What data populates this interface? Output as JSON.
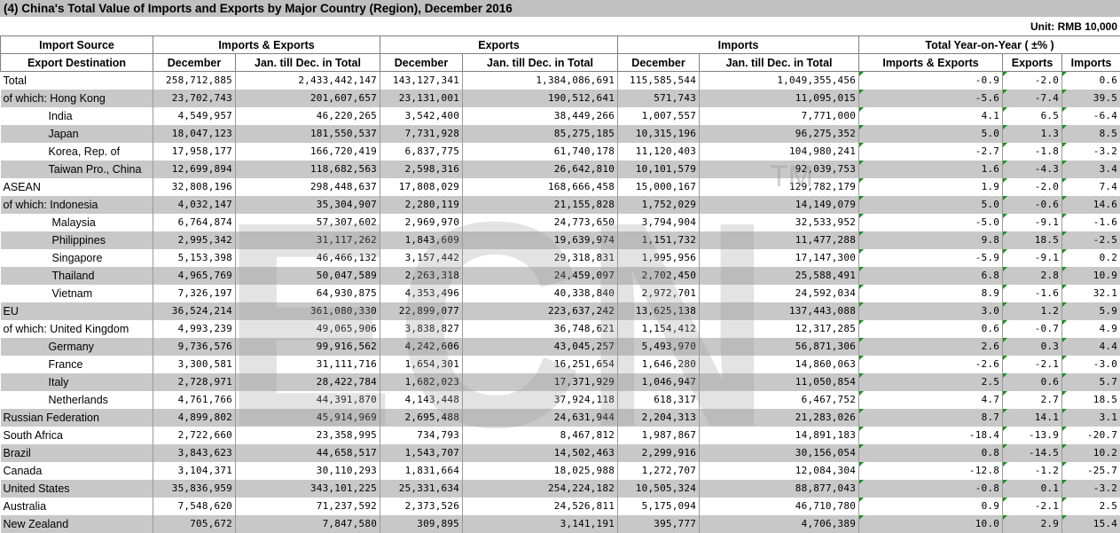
{
  "title": "(4) China's Total Value of Imports and Exports by Major Country (Region), December 2016",
  "unit": "Unit: RMB 10,000",
  "watermark": {
    "text": "ECN",
    "tm": "TM"
  },
  "header": {
    "row1": [
      "Import Source",
      "Imports & Exports",
      "Exports",
      "Imports",
      "Total Year-on-Year ( ±% )"
    ],
    "row2": [
      "Export Destination",
      "December",
      "Jan. till Dec. in Total",
      "December",
      "Jan. till Dec. in Total",
      "December",
      "Jan. till Dec. in Total",
      "Imports & Exports",
      "Exports",
      "Imports"
    ]
  },
  "rows": [
    {
      "label": "Total",
      "indent": 0,
      "values": [
        "258,712,885",
        "2,433,442,147",
        "143,127,341",
        "1,384,086,691",
        "115,585,544",
        "1,049,355,456",
        "-0.9",
        "-2.0",
        "0.6"
      ]
    },
    {
      "label": "of which: Hong Kong",
      "indent": 0,
      "values": [
        "23,702,743",
        "201,607,657",
        "23,131,001",
        "190,512,641",
        "571,743",
        "11,095,015",
        "-5.6",
        "-7.4",
        "39.5"
      ]
    },
    {
      "label": "India",
      "indent": 1,
      "values": [
        "4,549,957",
        "46,220,265",
        "3,542,400",
        "38,449,266",
        "1,007,557",
        "7,771,000",
        "4.1",
        "6.5",
        "-6.4"
      ]
    },
    {
      "label": "Japan",
      "indent": 1,
      "values": [
        "18,047,123",
        "181,550,537",
        "7,731,928",
        "85,275,185",
        "10,315,196",
        "96,275,352",
        "5.0",
        "1.3",
        "8.5"
      ]
    },
    {
      "label": "Korea, Rep. of",
      "indent": 1,
      "values": [
        "17,958,177",
        "166,720,419",
        "6,837,775",
        "61,740,178",
        "11,120,403",
        "104,980,241",
        "-2.7",
        "-1.8",
        "-3.2"
      ]
    },
    {
      "label": "Taiwan Pro., China",
      "indent": 1,
      "values": [
        "12,699,894",
        "118,682,563",
        "2,598,316",
        "26,642,810",
        "10,101,579",
        "92,039,753",
        "1.6",
        "-4.3",
        "3.4"
      ]
    },
    {
      "label": "ASEAN",
      "indent": 0,
      "values": [
        "32,808,196",
        "298,448,637",
        "17,808,029",
        "168,666,458",
        "15,000,167",
        "129,782,179",
        "1.9",
        "-2.0",
        "7.4"
      ]
    },
    {
      "label": "of which: Indonesia",
      "indent": 0,
      "values": [
        "4,032,147",
        "35,304,907",
        "2,280,119",
        "21,155,828",
        "1,752,029",
        "14,149,079",
        "5.0",
        "-0.6",
        "14.6"
      ]
    },
    {
      "label": "Malaysia",
      "indent": 2,
      "values": [
        "6,764,874",
        "57,307,602",
        "2,969,970",
        "24,773,650",
        "3,794,904",
        "32,533,952",
        "-5.0",
        "-9.1",
        "-1.6"
      ]
    },
    {
      "label": "Philippines",
      "indent": 2,
      "values": [
        "2,995,342",
        "31,117,262",
        "1,843,609",
        "19,639,974",
        "1,151,732",
        "11,477,288",
        "9.8",
        "18.5",
        "-2.5"
      ]
    },
    {
      "label": "Singapore",
      "indent": 2,
      "values": [
        "5,153,398",
        "46,466,132",
        "3,157,442",
        "29,318,831",
        "1,995,956",
        "17,147,300",
        "-5.9",
        "-9.1",
        "0.2"
      ]
    },
    {
      "label": "Thailand",
      "indent": 2,
      "values": [
        "4,965,769",
        "50,047,589",
        "2,263,318",
        "24,459,097",
        "2,702,450",
        "25,588,491",
        "6.8",
        "2.8",
        "10.9"
      ]
    },
    {
      "label": "Vietnam",
      "indent": 2,
      "values": [
        "7,326,197",
        "64,930,875",
        "4,353,496",
        "40,338,840",
        "2,972,701",
        "24,592,034",
        "8.9",
        "-1.6",
        "32.1"
      ]
    },
    {
      "label": "EU",
      "indent": 0,
      "values": [
        "36,524,214",
        "361,080,330",
        "22,899,077",
        "223,637,242",
        "13,625,138",
        "137,443,088",
        "3.0",
        "1.2",
        "5.9"
      ]
    },
    {
      "label": "of which: United Kingdom",
      "indent": 0,
      "values": [
        "4,993,239",
        "49,065,906",
        "3,838,827",
        "36,748,621",
        "1,154,412",
        "12,317,285",
        "0.6",
        "-0.7",
        "4.9"
      ]
    },
    {
      "label": "Germany",
      "indent": 1,
      "values": [
        "9,736,576",
        "99,916,562",
        "4,242,606",
        "43,045,257",
        "5,493,970",
        "56,871,306",
        "2.6",
        "0.3",
        "4.4"
      ]
    },
    {
      "label": "France",
      "indent": 1,
      "values": [
        "3,300,581",
        "31,111,716",
        "1,654,301",
        "16,251,654",
        "1,646,280",
        "14,860,063",
        "-2.6",
        "-2.1",
        "-3.0"
      ]
    },
    {
      "label": "Italy",
      "indent": 1,
      "values": [
        "2,728,971",
        "28,422,784",
        "1,682,023",
        "17,371,929",
        "1,046,947",
        "11,050,854",
        "2.5",
        "0.6",
        "5.7"
      ]
    },
    {
      "label": "Netherlands",
      "indent": 1,
      "values": [
        "4,761,766",
        "44,391,870",
        "4,143,448",
        "37,924,118",
        "618,317",
        "6,467,752",
        "4.7",
        "2.7",
        "18.5"
      ]
    },
    {
      "label": "Russian Federation",
      "indent": 0,
      "values": [
        "4,899,802",
        "45,914,969",
        "2,695,488",
        "24,631,944",
        "2,204,313",
        "21,283,026",
        "8.7",
        "14.1",
        "3.1"
      ]
    },
    {
      "label": "South Africa",
      "indent": 0,
      "values": [
        "2,722,660",
        "23,358,995",
        "734,793",
        "8,467,812",
        "1,987,867",
        "14,891,183",
        "-18.4",
        "-13.9",
        "-20.7"
      ]
    },
    {
      "label": "Brazil",
      "indent": 0,
      "values": [
        "3,843,623",
        "44,658,517",
        "1,543,707",
        "14,502,463",
        "2,299,916",
        "30,156,054",
        "0.8",
        "-14.5",
        "10.2"
      ]
    },
    {
      "label": "Canada",
      "indent": 0,
      "values": [
        "3,104,371",
        "30,110,293",
        "1,831,664",
        "18,025,988",
        "1,272,707",
        "12,084,304",
        "-12.8",
        "-1.2",
        "-25.7"
      ]
    },
    {
      "label": "United States",
      "indent": 0,
      "values": [
        "35,836,959",
        "343,101,225",
        "25,331,634",
        "254,224,182",
        "10,505,324",
        "88,877,043",
        "-0.8",
        "0.1",
        "-3.2"
      ]
    },
    {
      "label": "Australia",
      "indent": 0,
      "values": [
        "7,548,620",
        "71,237,592",
        "2,373,526",
        "24,526,811",
        "5,175,094",
        "46,710,780",
        "0.9",
        "-2.1",
        "2.5"
      ]
    },
    {
      "label": "New Zealand",
      "indent": 0,
      "values": [
        "705,672",
        "7,847,580",
        "309,895",
        "3,141,191",
        "395,777",
        "4,706,389",
        "10.0",
        "2.9",
        "15.4"
      ]
    }
  ]
}
